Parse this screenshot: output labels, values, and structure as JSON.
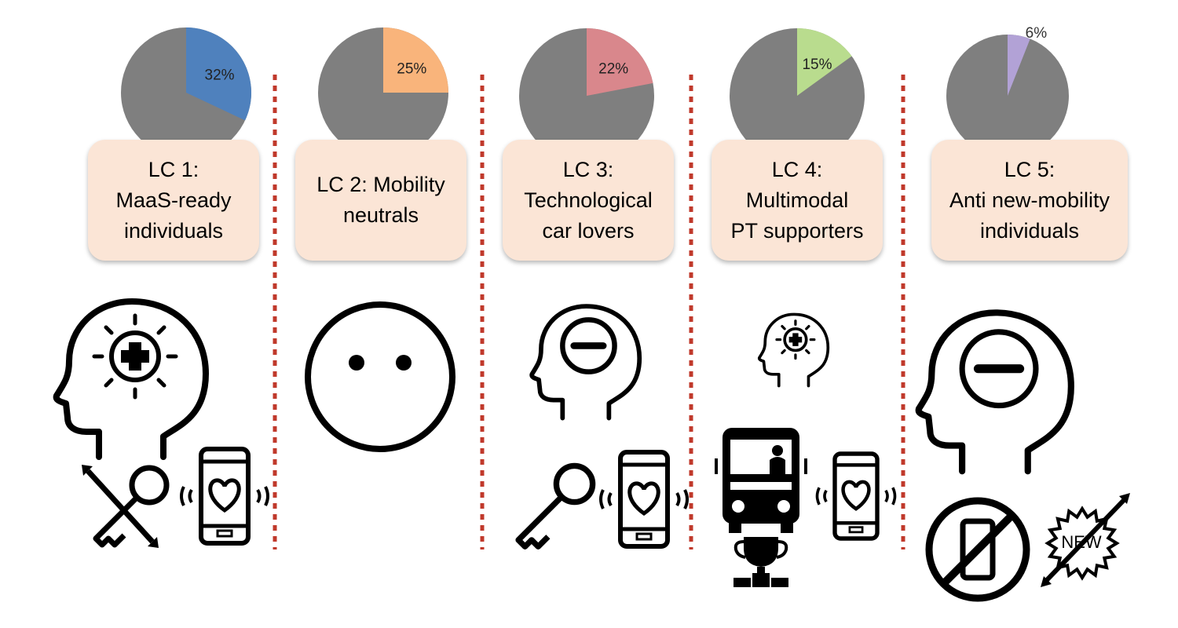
{
  "chart_data": {
    "type": "pie",
    "note_series": "one small pie per latent class showing its share",
    "groups": [
      {
        "label_line1": "LC 1:",
        "label_line2": "MaaS-ready",
        "label_line3": "individuals",
        "value": 32,
        "percent_label": "32%",
        "color": "#4f81bd"
      },
      {
        "label_line1": "LC 2: Mobility",
        "label_line2": "neutrals",
        "label_line3": "",
        "value": 25,
        "percent_label": "25%",
        "color": "#f9b47b"
      },
      {
        "label_line1": "LC 3:",
        "label_line2": "Technological",
        "label_line3": "car lovers",
        "value": 22,
        "percent_label": "22%",
        "color": "#d9878c"
      },
      {
        "label_line1": "LC 4:",
        "label_line2": "Multimodal",
        "label_line3": "PT supporters",
        "value": 15,
        "percent_label": "15%",
        "color": "#b9dc8e"
      },
      {
        "label_line1": "LC 5:",
        "label_line2": "Anti new-mobility",
        "label_line3": "individuals",
        "value": 6,
        "percent_label": "6%",
        "color": "#b2a2d6"
      }
    ],
    "remainder_color": "#7f7f7f"
  },
  "icons": {
    "lc1": [
      "head-plus-icon",
      "crossed-key-icon",
      "phone-heart-icon"
    ],
    "lc2": [
      "neutral-face-icon"
    ],
    "lc3": [
      "head-minus-icon",
      "key-icon",
      "phone-heart-icon"
    ],
    "lc4": [
      "head-plus-icon",
      "bus-icon",
      "trophy-icon",
      "phone-heart-icon"
    ],
    "lc5": [
      "head-minus-icon",
      "no-phone-icon",
      "crossed-new-badge-icon"
    ]
  },
  "new_badge_text": "NEW",
  "divider_color": "#c0392b"
}
